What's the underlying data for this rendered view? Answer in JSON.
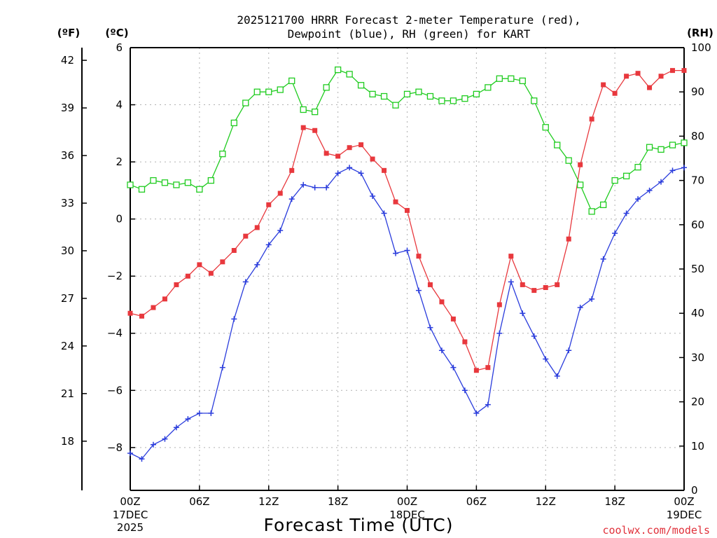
{
  "chart_data": {
    "type": "line",
    "title": "2025121700 HRRR Forecast 2-meter Temperature (red),",
    "subtitle": "Dewpoint (blue), RH (green) for KART",
    "xlabel": "Forecast Time (UTC)",
    "credit": "coolwx.com/models",
    "left_outer_unit": "(ºF)",
    "left_inner_unit": "(ºC)",
    "right_unit": "(RH)",
    "x_ticks": [
      {
        "hour": 0,
        "label": "00Z",
        "sub1": "17DEC",
        "sub2": "2025"
      },
      {
        "hour": 6,
        "label": "06Z",
        "sub1": "",
        "sub2": ""
      },
      {
        "hour": 12,
        "label": "12Z",
        "sub1": "",
        "sub2": ""
      },
      {
        "hour": 18,
        "label": "18Z",
        "sub1": "",
        "sub2": ""
      },
      {
        "hour": 24,
        "label": "00Z",
        "sub1": "18DEC",
        "sub2": ""
      },
      {
        "hour": 30,
        "label": "06Z",
        "sub1": "",
        "sub2": ""
      },
      {
        "hour": 36,
        "label": "12Z",
        "sub1": "",
        "sub2": ""
      },
      {
        "hour": 42,
        "label": "18Z",
        "sub1": "",
        "sub2": ""
      },
      {
        "hour": 48,
        "label": "00Z",
        "sub1": "19DEC",
        "sub2": ""
      }
    ],
    "xlim": [
      0,
      48
    ],
    "y_celsius": {
      "lim": [
        -9.5,
        6.0
      ],
      "ticks": [
        -8,
        -6,
        -4,
        -2,
        0,
        2,
        4,
        6
      ],
      "labels": [
        "−8",
        "−6",
        "−4",
        "−2",
        "0",
        "2",
        "4",
        "6"
      ]
    },
    "y_fahrenheit": {
      "ticks": [
        18,
        21,
        24,
        27,
        30,
        33,
        36,
        39,
        42
      ],
      "labels": [
        "18",
        "21",
        "24",
        "27",
        "30",
        "33",
        "36",
        "39",
        "42"
      ]
    },
    "y_rh": {
      "lim": [
        0,
        100
      ],
      "ticks": [
        0,
        10,
        20,
        30,
        40,
        50,
        60,
        70,
        80,
        90,
        100
      ],
      "labels": [
        "0",
        "10",
        "20",
        "30",
        "40",
        "50",
        "60",
        "70",
        "80",
        "90",
        "100"
      ]
    },
    "grid": true,
    "series": [
      {
        "name": "Temperature",
        "axis": "celsius",
        "color": "#e8383d",
        "marker": "filled-square",
        "values": [
          -3.3,
          -3.4,
          -3.1,
          -2.8,
          -2.3,
          -2.0,
          -1.6,
          -1.9,
          -1.5,
          -1.1,
          -0.6,
          -0.3,
          0.5,
          0.9,
          1.7,
          3.2,
          3.1,
          2.3,
          2.2,
          2.5,
          2.6,
          2.1,
          1.7,
          0.6,
          0.3,
          -1.3,
          -2.3,
          -2.9,
          -3.5,
          -4.3,
          -5.3,
          -5.2,
          -3.0,
          -1.3,
          -2.3,
          -2.5,
          -2.4,
          -2.3,
          -0.7,
          1.9,
          3.5,
          4.7,
          4.4,
          5.0,
          5.1,
          4.6,
          5.0,
          5.2,
          5.2
        ]
      },
      {
        "name": "Dewpoint",
        "axis": "celsius",
        "color": "#2a3cdc",
        "marker": "plus",
        "values": [
          -8.2,
          -8.4,
          -7.9,
          -7.7,
          -7.3,
          -7.0,
          -6.8,
          -6.8,
          -5.2,
          -3.5,
          -2.2,
          -1.6,
          -0.9,
          -0.4,
          0.7,
          1.2,
          1.1,
          1.1,
          1.6,
          1.8,
          1.6,
          0.8,
          0.2,
          -1.2,
          -1.1,
          -2.5,
          -3.8,
          -4.6,
          -5.2,
          -6.0,
          -6.8,
          -6.5,
          -4.0,
          -2.2,
          -3.3,
          -4.1,
          -4.9,
          -5.5,
          -4.6,
          -3.1,
          -2.8,
          -1.4,
          -0.5,
          0.2,
          0.7,
          1.0,
          1.3,
          1.7,
          1.8
        ]
      },
      {
        "name": "RH",
        "axis": "rh",
        "color": "#20cc20",
        "marker": "open-square",
        "values": [
          69,
          68,
          70,
          69.5,
          69,
          69.5,
          68,
          70,
          76,
          83,
          87.5,
          90,
          90,
          90.5,
          92.5,
          86,
          85.5,
          91,
          95,
          94,
          91.5,
          89.5,
          89,
          87,
          89.5,
          90,
          89,
          88,
          88,
          88.5,
          89.5,
          91,
          93,
          93,
          92.5,
          88,
          82,
          78,
          74.5,
          69,
          63,
          64.5,
          70,
          71,
          73,
          77.5,
          77,
          78,
          78.5
        ]
      }
    ]
  }
}
